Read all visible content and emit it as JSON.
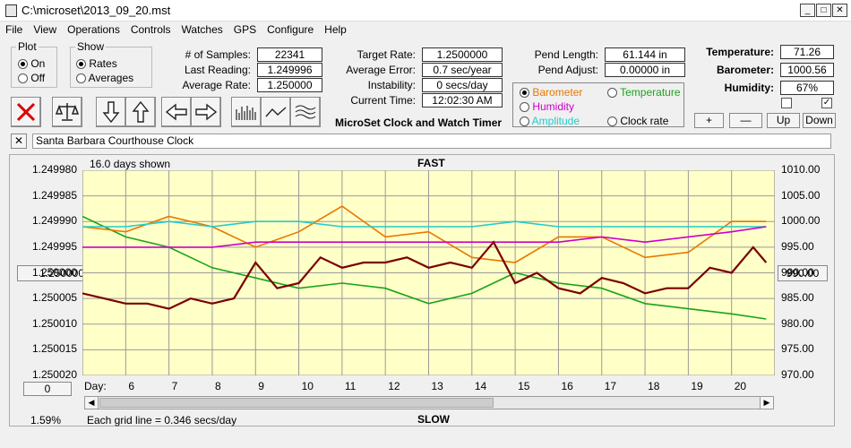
{
  "window": {
    "title": "C:\\microset\\2013_09_20.mst"
  },
  "menu": [
    "File",
    "View",
    "Operations",
    "Controls",
    "Watches",
    "GPS",
    "Configure",
    "Help"
  ],
  "plot_group": {
    "title": "Plot",
    "options": [
      "On",
      "Off"
    ],
    "selected": "On"
  },
  "show_group": {
    "title": "Show",
    "options": [
      "Rates",
      "Averages"
    ],
    "selected": "Rates"
  },
  "stats": {
    "samples_label": "# of Samples:",
    "samples": "22341",
    "last_reading_label": "Last Reading:",
    "last_reading": "1.249996",
    "average_rate_label": "Average Rate:",
    "average_rate": "1.250000",
    "target_rate_label": "Target Rate:",
    "target_rate": "1.2500000",
    "average_error_label": "Average Error:",
    "average_error": "0.7 sec/year",
    "instability_label": "Instability:",
    "instability": "0 secs/day",
    "current_time_label": "Current Time:",
    "current_time": "12:02:30 AM",
    "pend_length_label": "Pend Length:",
    "pend_length": "61.144 in",
    "pend_adjust_label": "Pend Adjust:",
    "pend_adjust": "0.00000 in",
    "temperature_label": "Temperature:",
    "temperature": "71.26",
    "barometer_label": "Barometer:",
    "barometer": "1000.56",
    "humidity_label": "Humidity:",
    "humidity": "67%"
  },
  "app_caption": "MicroSet Clock and Watch Timer",
  "series_selector": [
    {
      "label": "Barometer",
      "color": "#e87800",
      "selected": true
    },
    {
      "label": "Temperature",
      "color": "#1aa31a",
      "selected": false
    },
    {
      "label": "Humidity",
      "color": "#cc00cc",
      "selected": false
    },
    {
      "label": "Clock rate",
      "color": "#000000",
      "selected": false
    },
    {
      "label": "Amplitude",
      "color": "#22cccc",
      "selected": false
    }
  ],
  "small_buttons": {
    "plus": "+",
    "minus": "—",
    "up": "Up",
    "down": "Down"
  },
  "checkboxes": {
    "left": "",
    "right": "✓"
  },
  "close_x": "✕",
  "description": "Santa Barbara Courthouse Clock",
  "chart_data": {
    "type": "line",
    "top_label": "FAST",
    "bottom_label": "SLOW",
    "days_shown": "16.0 days shown",
    "grid_note": "Each grid line = 0.346 secs/day",
    "percent": "1.59%",
    "left_button": "1.250000",
    "right_button": "990.00",
    "zero_button": "0",
    "day_label": "Day:",
    "x_ticks": [
      "6",
      "7",
      "8",
      "9",
      "10",
      "11",
      "12",
      "13",
      "14",
      "15",
      "16",
      "17",
      "18",
      "19",
      "20"
    ],
    "xlim": [
      5.0,
      21.0
    ],
    "y_left_ticks": [
      "1.249980",
      "1.249985",
      "1.249990",
      "1.249995",
      "1.250000",
      "1.250005",
      "1.250010",
      "1.250015",
      "1.250020"
    ],
    "ylim_left": [
      1.24998,
      1.25002
    ],
    "y_right_ticks": [
      "1010.00",
      "1005.00",
      "1000.00",
      "995.00",
      "990.00",
      "985.00",
      "980.00",
      "975.00",
      "970.00"
    ],
    "ylim_right": [
      970.0,
      1010.0
    ],
    "series": [
      {
        "name": "Temperature",
        "color": "#1aa31a",
        "x": [
          5.0,
          6.0,
          7.0,
          8.0,
          9.0,
          10.0,
          11.0,
          12.0,
          13.0,
          14.0,
          15.0,
          16.0,
          17.0,
          18.0,
          19.0,
          20.0,
          20.8
        ],
        "y": [
          1.249989,
          1.249993,
          1.249995,
          1.249999,
          1.250001,
          1.250003,
          1.250002,
          1.250003,
          1.250006,
          1.250004,
          1.25,
          1.250002,
          1.250003,
          1.250006,
          1.250007,
          1.250008,
          1.250009
        ]
      },
      {
        "name": "Barometer",
        "color": "#e87800",
        "x": [
          5.0,
          6.0,
          7.0,
          8.0,
          9.0,
          10.0,
          11.0,
          12.0,
          13.0,
          14.0,
          15.0,
          16.0,
          17.0,
          18.0,
          19.0,
          20.0,
          20.8
        ],
        "y": [
          1.249991,
          1.249992,
          1.249989,
          1.249991,
          1.249995,
          1.249992,
          1.249987,
          1.249993,
          1.249992,
          1.249997,
          1.249998,
          1.249993,
          1.249993,
          1.249997,
          1.249996,
          1.24999,
          1.24999
        ]
      },
      {
        "name": "Amplitude",
        "color": "#22cccc",
        "x": [
          5.0,
          6.0,
          7.0,
          8.0,
          9.0,
          10.0,
          11.0,
          12.0,
          13.0,
          14.0,
          15.0,
          16.0,
          17.0,
          18.0,
          19.0,
          20.0,
          20.8
        ],
        "y": [
          1.249991,
          1.249991,
          1.24999,
          1.249991,
          1.24999,
          1.24999,
          1.249991,
          1.249991,
          1.249991,
          1.249991,
          1.24999,
          1.249991,
          1.249991,
          1.249991,
          1.249991,
          1.249991,
          1.249991
        ]
      },
      {
        "name": "Humidity",
        "color": "#cc00cc",
        "x": [
          5.0,
          6.0,
          7.0,
          8.0,
          9.0,
          10.0,
          11.0,
          12.0,
          13.0,
          14.0,
          15.0,
          16.0,
          17.0,
          18.0,
          19.0,
          20.0,
          20.8
        ],
        "y": [
          1.249995,
          1.249995,
          1.249995,
          1.249995,
          1.249994,
          1.249994,
          1.249994,
          1.249994,
          1.249994,
          1.249994,
          1.249994,
          1.249994,
          1.249993,
          1.249994,
          1.249993,
          1.249992,
          1.249991
        ]
      },
      {
        "name": "Clock rate",
        "color": "#7a0000",
        "x": [
          5.0,
          5.5,
          6.0,
          6.5,
          7.0,
          7.5,
          8.0,
          8.5,
          9.0,
          9.5,
          10.0,
          10.5,
          11.0,
          11.5,
          12.0,
          12.5,
          13.0,
          13.5,
          14.0,
          14.5,
          15.0,
          15.5,
          16.0,
          16.5,
          17.0,
          17.5,
          18.0,
          18.5,
          19.0,
          19.5,
          20.0,
          20.5,
          20.8
        ],
        "y": [
          1.250004,
          1.250005,
          1.250006,
          1.250006,
          1.250007,
          1.250005,
          1.250006,
          1.250005,
          1.249998,
          1.250003,
          1.250002,
          1.249997,
          1.249999,
          1.249998,
          1.249998,
          1.249997,
          1.249999,
          1.249998,
          1.249999,
          1.249994,
          1.250002,
          1.25,
          1.250003,
          1.250004,
          1.250001,
          1.250002,
          1.250004,
          1.250003,
          1.250003,
          1.249999,
          1.25,
          1.249995,
          1.249998
        ]
      }
    ]
  }
}
